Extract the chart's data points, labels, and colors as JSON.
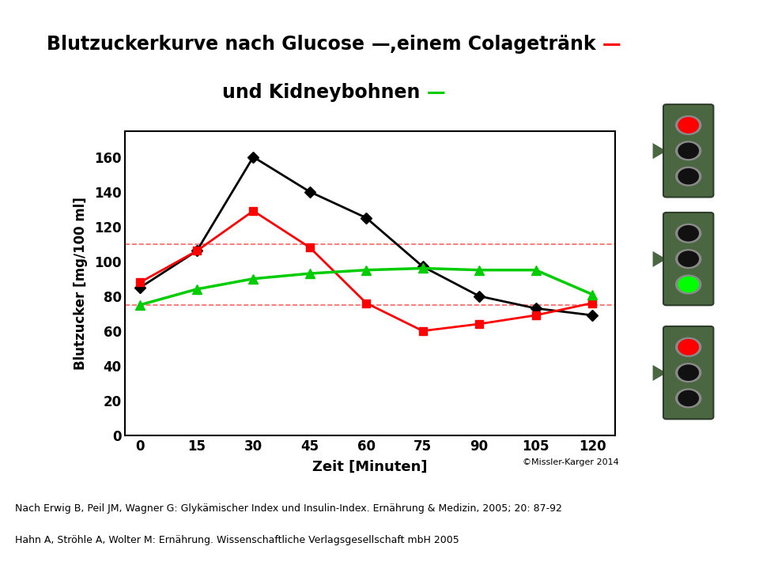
{
  "xlabel": "Zeit [Minuten]",
  "ylabel": "Blutzucker [mg/100 ml]",
  "x": [
    0,
    15,
    30,
    45,
    60,
    75,
    90,
    105,
    120
  ],
  "black_line": [
    85,
    106,
    160,
    140,
    125,
    97,
    80,
    73,
    69
  ],
  "red_line": [
    88,
    106,
    129,
    108,
    76,
    60,
    64,
    69,
    76
  ],
  "green_line": [
    75,
    84,
    90,
    93,
    95,
    96,
    95,
    95,
    81
  ],
  "hline_upper": 110,
  "hline_lower": 75,
  "black_color": "#000000",
  "red_color": "#FF0000",
  "green_color": "#00CC00",
  "dashed_color": "#FF6666",
  "ylim": [
    0,
    175
  ],
  "yticks": [
    0,
    20,
    40,
    60,
    80,
    100,
    120,
    140,
    160
  ],
  "xticks": [
    0,
    15,
    30,
    45,
    60,
    75,
    90,
    105,
    120
  ],
  "copyright": "©Missler-Karger 2014",
  "footnote1": "Nach Erwig B, Peil JM, Wagner G: Glykämischer Index und Insulin-Index. Ernährung & Medizin, 2005; 20: 87-92",
  "footnote2": "Hahn A, Ströhle A, Wolter M: Ernährung. Wissenschaftliche Verlagsgesellschaft mbH 2005",
  "tl_bg_color": "#4A6741",
  "tl_border_color": "#2d3d2a",
  "tl_gray": "#888888",
  "tl_red": "#FF0000",
  "tl_green": "#00FF00",
  "tl_black": "#111111"
}
